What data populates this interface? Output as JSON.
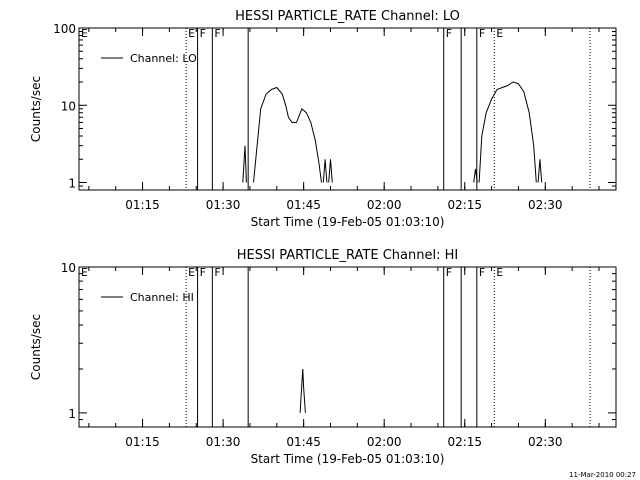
{
  "footer_timestamp": "11-Mar-2010 00:27",
  "chart_data": [
    {
      "type": "line",
      "title": "HESSI PARTICLE_RATE Channel: LO",
      "xlabel": "Start Time (19-Feb-05 01:03:10)",
      "ylabel": "Counts/sec",
      "yscale": "log",
      "xlim": [
        "01:03:10",
        "02:43:10"
      ],
      "ylim": [
        0.8,
        100
      ],
      "x_ticks": [
        "01:15",
        "01:30",
        "01:45",
        "02:00",
        "02:15",
        "02:30"
      ],
      "y_ticks": [
        "1",
        "10",
        "100"
      ],
      "legend": {
        "label": "Channel: LO",
        "position": "top-left"
      },
      "markers": [
        {
          "time": "01:23:07",
          "label": "E",
          "style": "dotted"
        },
        {
          "time": "01:25:15",
          "label": "F",
          "style": "solid"
        },
        {
          "time": "01:28:00",
          "label": "F",
          "style": "solid"
        },
        {
          "time": "01:34:40",
          "label": "",
          "style": "solid"
        },
        {
          "time": "02:11:05",
          "label": "F",
          "style": "solid"
        },
        {
          "time": "02:14:20",
          "label": "",
          "style": "solid"
        },
        {
          "time": "02:17:15",
          "label": "F",
          "style": "solid"
        },
        {
          "time": "02:20:30",
          "label": "E",
          "style": "dotted"
        },
        {
          "time": "02:38:20",
          "label": "",
          "style": "dotted"
        }
      ],
      "series": [
        {
          "segments": [
            [
              [
                "01:33:40",
                1.0
              ],
              [
                "01:34:05",
                3.0
              ],
              [
                "01:34:20",
                1.0
              ]
            ],
            [
              [
                "01:35:40",
                1.0
              ],
              [
                "01:36:20",
                3.0
              ],
              [
                "01:37:00",
                9.0
              ],
              [
                "01:38:00",
                14.0
              ],
              [
                "01:39:00",
                16.0
              ],
              [
                "01:40:00",
                17.0
              ],
              [
                "01:41:00",
                14.0
              ],
              [
                "01:41:40",
                10.0
              ],
              [
                "01:42:10",
                7.0
              ],
              [
                "01:42:50",
                6.0
              ],
              [
                "01:43:40",
                6.0
              ],
              [
                "01:44:40",
                9.0
              ],
              [
                "01:45:30",
                8.0
              ],
              [
                "01:46:20",
                6.0
              ],
              [
                "01:47:10",
                3.5
              ],
              [
                "01:47:50",
                1.8
              ],
              [
                "01:48:20",
                1.0
              ]
            ],
            [
              [
                "01:48:40",
                1.0
              ],
              [
                "01:49:00",
                2.0
              ],
              [
                "01:49:20",
                1.0
              ]
            ],
            [
              [
                "01:49:40",
                1.0
              ],
              [
                "01:50:00",
                2.0
              ],
              [
                "01:50:20",
                1.0
              ]
            ],
            [
              [
                "02:16:40",
                1.0
              ],
              [
                "02:17:00",
                1.5
              ],
              [
                "02:17:20",
                1.0
              ]
            ],
            [
              [
                "02:17:40",
                1.0
              ],
              [
                "02:18:10",
                4.0
              ],
              [
                "02:19:00",
                8.0
              ],
              [
                "02:20:00",
                12.0
              ],
              [
                "02:21:00",
                16.0
              ],
              [
                "02:22:00",
                17.0
              ],
              [
                "02:23:00",
                18.0
              ],
              [
                "02:24:00",
                20.0
              ],
              [
                "02:25:00",
                19.0
              ],
              [
                "02:26:00",
                15.0
              ],
              [
                "02:27:00",
                8.0
              ],
              [
                "02:27:50",
                3.0
              ],
              [
                "02:28:20",
                1.0
              ]
            ],
            [
              [
                "02:28:40",
                1.0
              ],
              [
                "02:29:00",
                2.0
              ],
              [
                "02:29:20",
                1.0
              ]
            ]
          ]
        }
      ]
    },
    {
      "type": "line",
      "title": "HESSI PARTICLE_RATE Channel: HI",
      "xlabel": "Start Time (19-Feb-05 01:03:10)",
      "ylabel": "Counts/sec",
      "yscale": "log",
      "xlim": [
        "01:03:10",
        "02:43:10"
      ],
      "ylim": [
        0.8,
        10
      ],
      "x_ticks": [
        "01:15",
        "01:30",
        "01:45",
        "02:00",
        "02:15",
        "02:30"
      ],
      "y_ticks": [
        "1",
        "10"
      ],
      "legend": {
        "label": "Channel: HI",
        "position": "top-left"
      },
      "markers": [
        {
          "time": "01:23:07",
          "label": "E",
          "style": "dotted"
        },
        {
          "time": "01:25:15",
          "label": "F",
          "style": "solid"
        },
        {
          "time": "01:28:00",
          "label": "F",
          "style": "solid"
        },
        {
          "time": "01:34:40",
          "label": "",
          "style": "solid"
        },
        {
          "time": "02:11:05",
          "label": "F",
          "style": "solid"
        },
        {
          "time": "02:14:20",
          "label": "",
          "style": "solid"
        },
        {
          "time": "02:17:15",
          "label": "F",
          "style": "solid"
        },
        {
          "time": "02:20:30",
          "label": "E",
          "style": "dotted"
        },
        {
          "time": "02:38:20",
          "label": "",
          "style": "dotted"
        }
      ],
      "series": [
        {
          "segments": [
            [
              [
                "01:44:20",
                1.0
              ],
              [
                "01:44:40",
                1.6
              ],
              [
                "01:44:50",
                2.0
              ],
              [
                "01:45:00",
                1.5
              ],
              [
                "01:45:20",
                1.0
              ]
            ]
          ]
        }
      ]
    }
  ]
}
